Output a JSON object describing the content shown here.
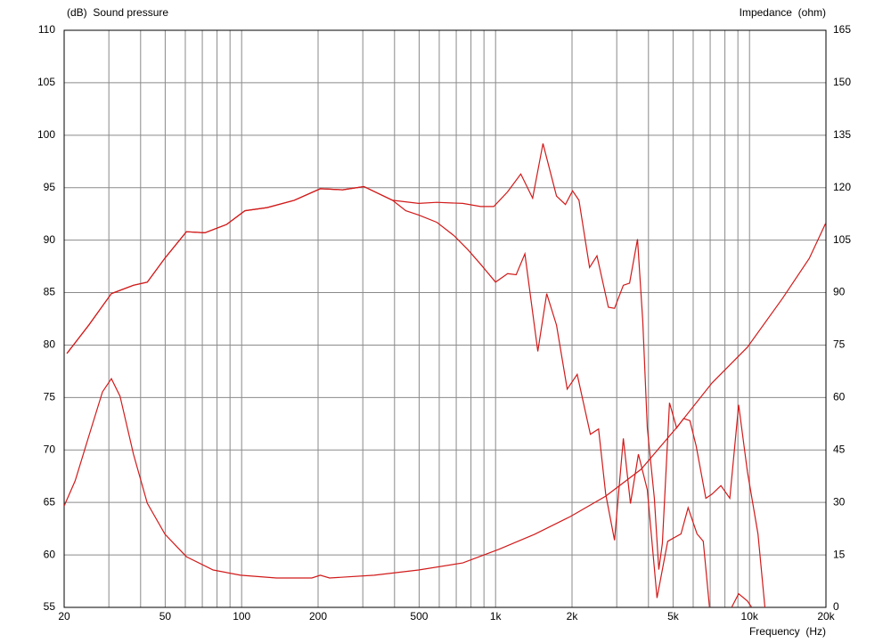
{
  "chart_data": {
    "type": "line",
    "y_label": "(dB)  Sound pressure",
    "y2_label": "Impedance  (ohm)",
    "x_label": "Frequency  (Hz)",
    "log_x": true,
    "grid": true,
    "xlim": [
      20,
      20000
    ],
    "xticks": [
      20,
      50,
      100,
      200,
      500,
      {
        "value": 1000,
        "label": "1k"
      },
      {
        "value": 2000,
        "label": "2k"
      },
      {
        "value": 5000,
        "label": "5k"
      },
      {
        "value": 10000,
        "label": "10k"
      },
      {
        "value": 20000,
        "label": "20k"
      }
    ],
    "xminor": [
      30,
      40,
      60,
      70,
      80,
      90,
      300,
      400,
      600,
      700,
      800,
      900,
      3000,
      4000,
      6000,
      7000,
      8000,
      9000
    ],
    "ylim": [
      55,
      110
    ],
    "yticks": [
      55,
      60,
      65,
      70,
      75,
      80,
      85,
      90,
      95,
      100,
      105,
      110
    ],
    "y2lim": [
      0,
      165
    ],
    "y2ticks": [
      0,
      15,
      30,
      45,
      60,
      75,
      90,
      105,
      120,
      135,
      150,
      165
    ],
    "series": [
      {
        "color": "#d11a1a",
        "x": [
          20.5,
          25,
          30.7,
          37.5,
          42.5,
          49.9,
          60.6,
          71.6,
          87.3,
          103,
          126,
          161,
          204,
          250,
          303,
          393,
          498,
          587,
          743,
          873,
          984,
          1115,
          1257,
          1399,
          1537,
          1738,
          1884,
          2009,
          2130,
          2345,
          2507,
          2781,
          2940,
          3185,
          3371,
          3622,
          3800,
          3958,
          4219,
          4395,
          4538,
          4839,
          5162,
          5505,
          5824,
          6163,
          6733,
          7124,
          7718,
          8363,
          9060,
          9812,
          10800,
          11500
        ],
        "values": [
          79.2,
          81.9,
          84.9,
          85.7,
          86.0,
          88.3,
          90.8,
          90.7,
          91.5,
          92.8,
          93.1,
          93.8,
          94.9,
          94.8,
          95.1,
          93.8,
          93.5,
          93.6,
          93.5,
          93.2,
          93.2,
          94.6,
          96.3,
          94.0,
          99.2,
          94.2,
          93.4,
          94.7,
          93.8,
          87.4,
          88.5,
          83.6,
          83.5,
          85.7,
          85.9,
          90.1,
          82.3,
          72.1,
          65.4,
          58.6,
          61.1,
          74.5,
          72.1,
          73.0,
          72.8,
          70.4,
          65.4,
          65.8,
          66.6,
          65.4,
          74.3,
          67.9,
          62.0,
          55
        ]
      },
      {
        "color": "#d11a1a",
        "x": [
          20.5,
          25,
          30.7,
          37.5,
          42.5,
          49.9,
          60.6,
          71.6,
          87.3,
          103,
          126,
          161,
          204,
          250,
          303,
          393,
          443,
          498,
          587,
          688,
          777,
          873,
          1000,
          1115,
          1205,
          1304,
          1467,
          1590,
          1738,
          1915,
          2096,
          2363,
          2544,
          2714,
          2940,
          3185,
          3398,
          3651,
          3958,
          4324,
          4763,
          5374,
          5732,
          6213,
          6573,
          6959,
          7800,
          8500,
          9060,
          9812,
          10200
        ],
        "values": [
          79.2,
          81.9,
          84.9,
          85.7,
          86.0,
          88.3,
          90.8,
          90.7,
          91.5,
          92.8,
          93.1,
          93.8,
          94.9,
          94.8,
          95.1,
          93.8,
          92.8,
          92.4,
          91.7,
          90.4,
          89.1,
          87.7,
          86.0,
          86.8,
          86.7,
          88.7,
          79.4,
          84.9,
          81.9,
          75.8,
          77.2,
          71.5,
          72.0,
          65.8,
          61.4,
          71.1,
          64.9,
          69.6,
          66.2,
          55.9,
          61.3,
          62.0,
          64.5,
          62.0,
          61.3,
          55,
          null,
          55,
          56.3,
          55.6,
          55
        ]
      },
      {
        "color": "#d11a1a",
        "axis": "y2",
        "x": [
          20,
          22.1,
          25,
          28.3,
          30.7,
          33.2,
          37.5,
          42.5,
          49.9,
          60.6,
          77.2,
          99,
          137,
          189,
          204,
          222,
          333,
          498,
          743,
          1030,
          1424,
          1975,
          2714,
          3744,
          5162,
          7124,
          9812,
          13500,
          17200,
          20000
        ],
        "values": [
          29.0,
          36.2,
          48.9,
          61.6,
          65.4,
          60.4,
          43.8,
          29.8,
          20.9,
          14.5,
          10.7,
          9.2,
          8.4,
          8.4,
          9.2,
          8.4,
          9.2,
          10.7,
          12.7,
          16.6,
          20.9,
          26.0,
          31.8,
          39.5,
          51.4,
          64.2,
          74.4,
          88.4,
          99.8,
          110.0
        ]
      }
    ]
  }
}
